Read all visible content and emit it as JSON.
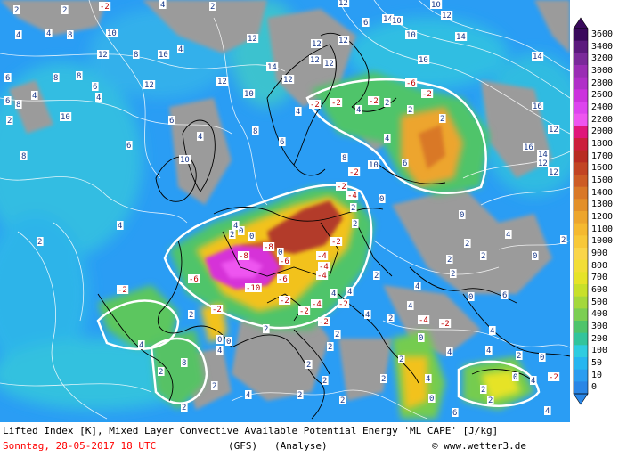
{
  "legend": {
    "title": "ML CAPE [J/kg]",
    "levels": [
      "3600",
      "3400",
      "3200",
      "3000",
      "2800",
      "2600",
      "2400",
      "2200",
      "2000",
      "1800",
      "1700",
      "1600",
      "1500",
      "1400",
      "1300",
      "1200",
      "1100",
      "1000",
      "900",
      "800",
      "700",
      "600",
      "500",
      "400",
      "300",
      "200",
      "100",
      "50",
      "10",
      "0"
    ],
    "colors": [
      "#3a0a5c",
      "#5b1a7d",
      "#7a2a9a",
      "#9a2eb4",
      "#b030c8",
      "#cc33dd",
      "#dd44ee",
      "#ee55f0",
      "#e0167a",
      "#cc1f3c",
      "#b82c22",
      "#c24423",
      "#cd5c25",
      "#d97828",
      "#e3902a",
      "#eda52d",
      "#f5b930",
      "#f8c838",
      "#fad54a",
      "#f2de36",
      "#e6e328",
      "#c8e02a",
      "#a4d83c",
      "#7cce52",
      "#4fc46b",
      "#33c49c",
      "#2fcce0",
      "#27b6f0",
      "#2b9df0",
      "#2a86e6"
    ]
  },
  "map": {
    "colors": {
      "sea": "#2a9df4",
      "ocean_light": "#34c3df",
      "land_cold": "#9b9b9b",
      "cape_low": "#4fc46b",
      "cape_mid": "#f2c21f",
      "cape_high": "#b33a2a",
      "cape_extreme": "#d633d8"
    },
    "lifted_index_labels": [
      "4",
      "8",
      "6",
      "4",
      "2",
      "4",
      "4",
      "8",
      "10",
      "12",
      "8",
      "10",
      "6",
      "4",
      "8",
      "8",
      "10",
      "6",
      "6",
      "8",
      "12",
      "4",
      "6",
      "2",
      "6",
      "4",
      "12",
      "4",
      "2",
      "10",
      "4",
      "12",
      "14",
      "12",
      "14",
      "14",
      "16",
      "12",
      "12",
      "12",
      "10",
      "8",
      "6",
      "4",
      "12",
      "12",
      "12",
      "10",
      "10",
      "12",
      "10",
      "10",
      "6",
      "8",
      "14",
      "16",
      "12",
      "14",
      "12",
      "10",
      "8",
      "6",
      "4",
      "2",
      "4",
      "2",
      "-2",
      "-2",
      "-2",
      "-2",
      "-4",
      "-6",
      "-2",
      "2",
      "-2",
      "0",
      "0",
      "2",
      "4",
      "2",
      "0",
      "2",
      "0",
      "0",
      "-8",
      "-6",
      "-4",
      "-2",
      "-6",
      "-4",
      "-8",
      "-10",
      "-4",
      "-6",
      "-2",
      "-4",
      "-2",
      "-2",
      "-2",
      "-4",
      "-2",
      "-2",
      "0",
      "2",
      "0",
      "4",
      "2",
      "6",
      "0",
      "2",
      "4",
      "2",
      "2",
      "4",
      "0",
      "4",
      "8",
      "2",
      "2",
      "2",
      "4",
      "2",
      "2",
      "2",
      "2",
      "2",
      "2",
      "2",
      "2",
      "4",
      "4",
      "2",
      "4",
      "0",
      "-2",
      "-2",
      "4",
      "2",
      "0",
      "2",
      "4",
      "4",
      "4",
      "2",
      "2",
      "4",
      "0",
      "4",
      "2",
      "6",
      "4",
      "2",
      "0",
      "2",
      "2",
      "-2"
    ]
  },
  "footer": {
    "title": "Lifted Index [K], Mixed Layer Convective Available Potential Energy 'ML CAPE' [J/kg]",
    "date": "Sonntag, 28-05-2017  18 UTC",
    "model": "(GFS)",
    "mode": "(Analyse)",
    "copyright": "© www.wetter3.de"
  }
}
